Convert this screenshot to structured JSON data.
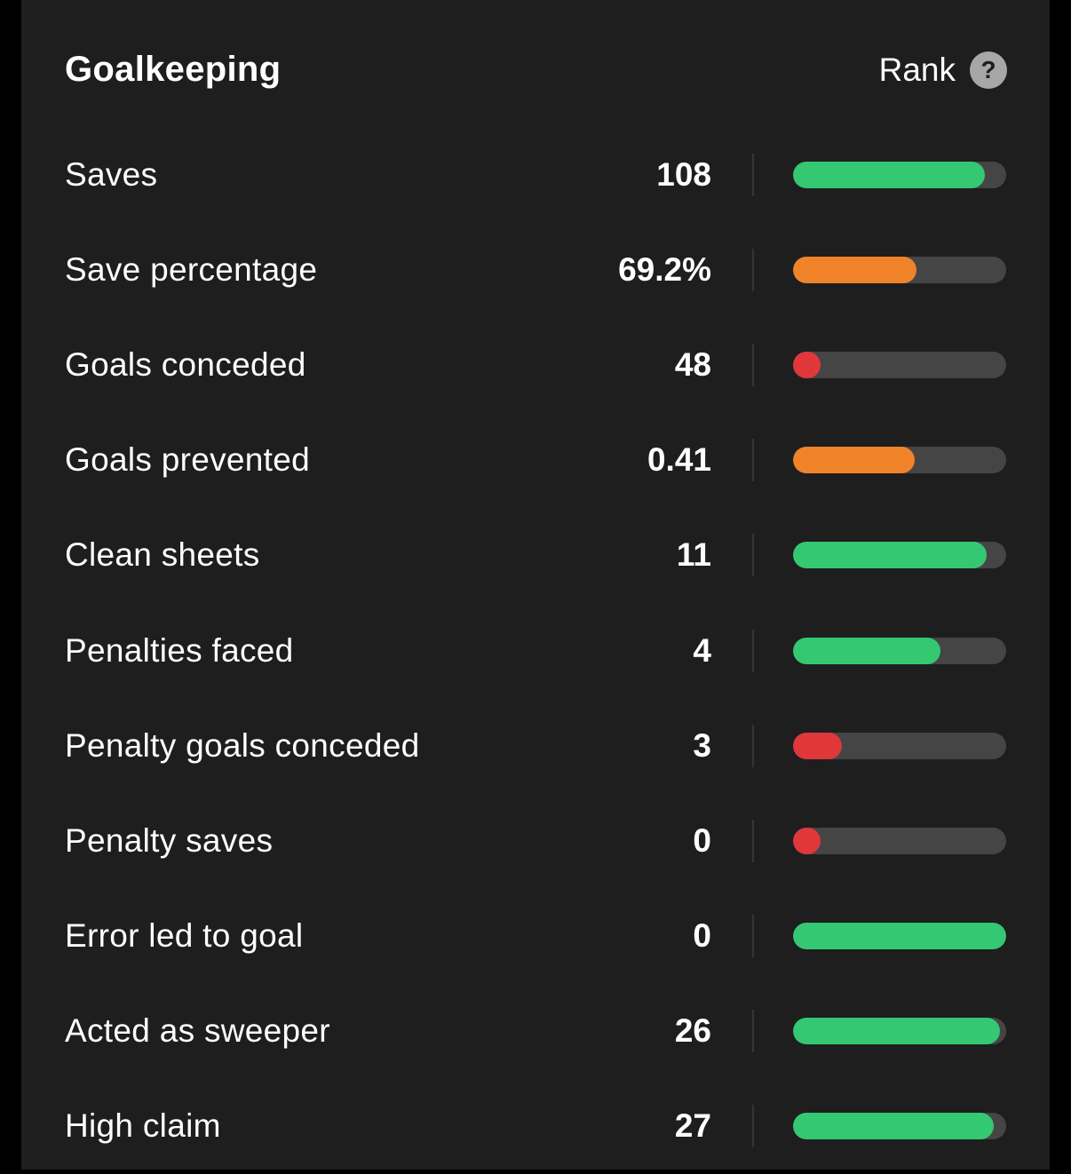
{
  "header": {
    "title": "Goalkeeping",
    "rank_label": "Rank",
    "help_icon_glyph": "?"
  },
  "colors": {
    "good": "#34c873",
    "average": "#f0832a",
    "poor": "#e0373b",
    "track": "#454545",
    "panel": "#1e1e1e"
  },
  "stats": [
    {
      "label": "Saves",
      "value": "108",
      "rank_fraction": 0.9,
      "rating": "good"
    },
    {
      "label": "Save percentage",
      "value": "69.2%",
      "rank_fraction": 0.58,
      "rating": "average"
    },
    {
      "label": "Goals conceded",
      "value": "48",
      "rank_fraction": 0.13,
      "rating": "poor"
    },
    {
      "label": "Goals prevented",
      "value": "0.41",
      "rank_fraction": 0.57,
      "rating": "average"
    },
    {
      "label": "Clean sheets",
      "value": "11",
      "rank_fraction": 0.91,
      "rating": "good"
    },
    {
      "label": "Penalties faced",
      "value": "4",
      "rank_fraction": 0.69,
      "rating": "good"
    },
    {
      "label": "Penalty goals conceded",
      "value": "3",
      "rank_fraction": 0.23,
      "rating": "poor"
    },
    {
      "label": "Penalty saves",
      "value": "0",
      "rank_fraction": 0.13,
      "rating": "poor"
    },
    {
      "label": "Error led to goal",
      "value": "0",
      "rank_fraction": 1.0,
      "rating": "good"
    },
    {
      "label": "Acted as sweeper",
      "value": "26",
      "rank_fraction": 0.97,
      "rating": "good"
    },
    {
      "label": "High claim",
      "value": "27",
      "rank_fraction": 0.94,
      "rating": "good"
    }
  ]
}
